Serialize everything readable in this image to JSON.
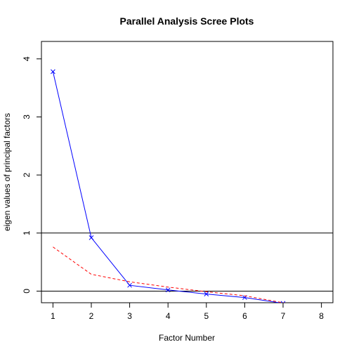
{
  "chart_data": {
    "type": "line",
    "title": "Parallel Analysis Scree Plots",
    "xlabel": "Factor Number",
    "ylabel": "eigen values of principal factors",
    "xlim": [
      0.7,
      8.3
    ],
    "ylim": [
      -0.2,
      4.3
    ],
    "x_ticks": [
      "1",
      "2",
      "3",
      "4",
      "5",
      "6",
      "7",
      "8"
    ],
    "y_ticks": [
      "0",
      "1",
      "2",
      "3",
      "4"
    ],
    "reference_lines": [
      0,
      1
    ],
    "series": [
      {
        "style": "solid-with-x-markers",
        "color": "#0000ff",
        "x": [
          1,
          2,
          3,
          4,
          5,
          6,
          7,
          8
        ],
        "y": [
          3.78,
          0.92,
          0.1,
          0.02,
          -0.05,
          -0.11,
          -0.21,
          -0.3
        ]
      },
      {
        "style": "dashed",
        "color": "#ff0000",
        "x": [
          1,
          2,
          3,
          4,
          5,
          6,
          7,
          8
        ],
        "y": [
          0.76,
          0.29,
          0.16,
          0.07,
          -0.01,
          -0.08,
          -0.2,
          -0.34
        ]
      }
    ]
  }
}
